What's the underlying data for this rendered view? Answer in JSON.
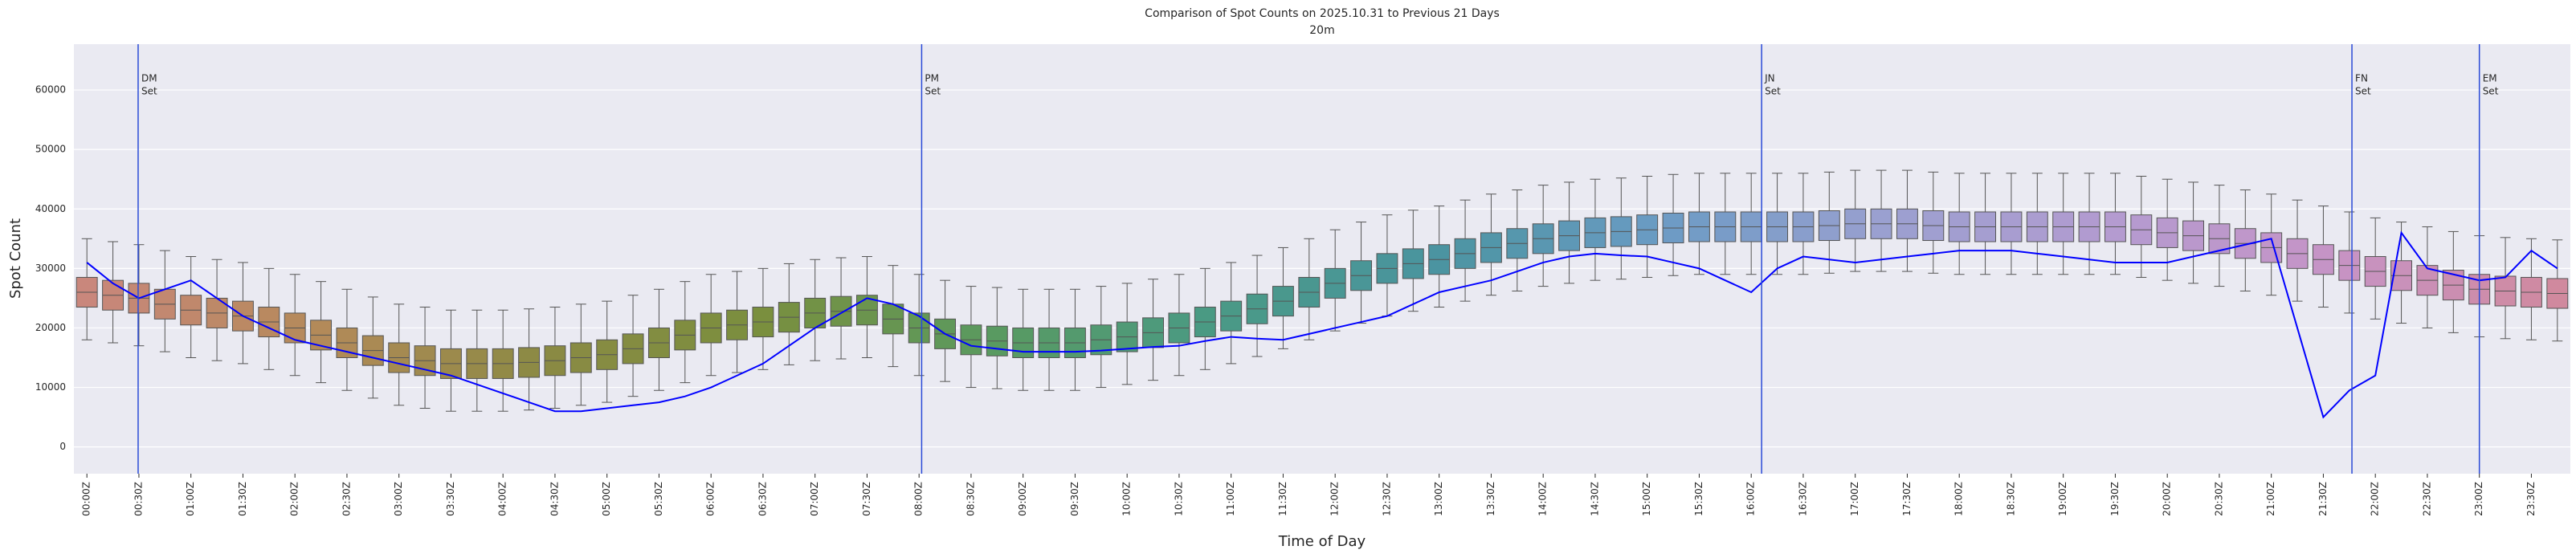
{
  "chart_data": {
    "type": "box",
    "title": "Comparison of Spot Counts on 2025.10.31 to Previous 21 Days",
    "subtitle": "20m",
    "x_label": "Time of Day",
    "y_label": "Spot Count",
    "categories": [
      "00:00Z",
      null,
      "00:30Z",
      null,
      "01:00Z",
      null,
      "01:30Z",
      null,
      "02:00Z",
      null,
      "02:30Z",
      null,
      "03:00Z",
      null,
      "03:30Z",
      null,
      "04:00Z",
      null,
      "04:30Z",
      null,
      "05:00Z",
      null,
      "05:30Z",
      null,
      "06:00Z",
      null,
      "06:30Z",
      null,
      "07:00Z",
      null,
      "07:30Z",
      null,
      "08:00Z",
      null,
      "08:30Z",
      null,
      "09:00Z",
      null,
      "09:30Z",
      null,
      "10:00Z",
      null,
      "10:30Z",
      null,
      "11:00Z",
      null,
      "11:30Z",
      null,
      "12:00Z",
      null,
      "12:30Z",
      null,
      "13:00Z",
      null,
      "13:30Z",
      null,
      "14:00Z",
      null,
      "14:30Z",
      null,
      "15:00Z",
      null,
      "15:30Z",
      null,
      "16:00Z",
      null,
      "16:30Z",
      null,
      "17:00Z",
      null,
      "17:30Z",
      null,
      "18:00Z",
      null,
      "18:30Z",
      null,
      "19:00Z",
      null,
      "19:30Z",
      null,
      "20:00Z",
      null,
      "20:30Z",
      null,
      "21:00Z",
      null,
      "21:30Z",
      null,
      "22:00Z",
      null,
      "22:30Z",
      null,
      "23:00Z",
      null,
      "23:30Z",
      null
    ],
    "boxes": {
      "whislo": [
        18000,
        17500,
        17000,
        16000,
        15000,
        14500,
        14000,
        13000,
        12000,
        10800,
        9500,
        8200,
        7000,
        6500,
        6000,
        6000,
        6000,
        6200,
        6500,
        7000,
        7500,
        8500,
        9500,
        10800,
        12000,
        12500,
        13000,
        13800,
        14500,
        14800,
        15000,
        13500,
        12000,
        11000,
        10000,
        9800,
        9500,
        9500,
        9500,
        10000,
        10500,
        11200,
        12000,
        13000,
        14000,
        15200,
        16500,
        18000,
        19500,
        20800,
        22000,
        22800,
        23500,
        24500,
        25500,
        26200,
        27000,
        27500,
        28000,
        28200,
        28500,
        28800,
        29000,
        29000,
        29000,
        29000,
        29000,
        29200,
        29500,
        29500,
        29500,
        29200,
        29000,
        29000,
        29000,
        29000,
        29000,
        29000,
        29000,
        28500,
        28000,
        27500,
        27000,
        26200,
        25500,
        24500,
        23500,
        22500,
        21500,
        20800,
        20000,
        19200,
        18500,
        18200,
        18000,
        17800
      ],
      "q1": [
        23500,
        23000,
        22500,
        21500,
        20500,
        20000,
        19500,
        18500,
        17500,
        16300,
        15000,
        13700,
        12500,
        12000,
        11500,
        11500,
        11500,
        11700,
        12000,
        12500,
        13000,
        14000,
        15000,
        16300,
        17500,
        18000,
        18500,
        19300,
        20000,
        20300,
        20500,
        19000,
        17500,
        16500,
        15500,
        15300,
        15000,
        15000,
        15000,
        15500,
        16000,
        16700,
        17500,
        18500,
        19500,
        20700,
        22000,
        23500,
        25000,
        26300,
        27500,
        28300,
        29000,
        30000,
        31000,
        31700,
        32500,
        33000,
        33500,
        33700,
        34000,
        34300,
        34500,
        34500,
        34500,
        34500,
        34500,
        34700,
        35000,
        35000,
        35000,
        34700,
        34500,
        34500,
        34500,
        34500,
        34500,
        34500,
        34500,
        34000,
        33500,
        33000,
        32500,
        31700,
        31000,
        30000,
        29000,
        28000,
        27000,
        26300,
        25500,
        24700,
        24000,
        23700,
        23500,
        23300
      ],
      "median": [
        26000,
        25500,
        25000,
        24000,
        23000,
        22500,
        22000,
        21000,
        20000,
        18800,
        17500,
        16200,
        15000,
        14500,
        14000,
        14000,
        14000,
        14200,
        14500,
        15000,
        15500,
        16500,
        17500,
        18800,
        20000,
        20500,
        21000,
        21800,
        22500,
        22800,
        23000,
        21500,
        20000,
        19000,
        18000,
        17800,
        17500,
        17500,
        17500,
        18000,
        18500,
        19200,
        20000,
        21000,
        22000,
        23200,
        24500,
        26000,
        27500,
        28800,
        30000,
        30800,
        31500,
        32500,
        33500,
        34200,
        35000,
        35500,
        36000,
        36200,
        36500,
        36800,
        37000,
        37000,
        37000,
        37000,
        37000,
        37200,
        37500,
        37500,
        37500,
        37200,
        37000,
        37000,
        37000,
        37000,
        37000,
        37000,
        37000,
        36500,
        36000,
        35500,
        35000,
        34200,
        33500,
        32500,
        31500,
        30500,
        29500,
        28800,
        28000,
        27200,
        26500,
        26200,
        26000,
        25800
      ],
      "q3": [
        28500,
        28000,
        27500,
        26500,
        25500,
        25000,
        24500,
        23500,
        22500,
        21300,
        20000,
        18700,
        17500,
        17000,
        16500,
        16500,
        16500,
        16700,
        17000,
        17500,
        18000,
        19000,
        20000,
        21300,
        22500,
        23000,
        23500,
        24300,
        25000,
        25300,
        25500,
        24000,
        22500,
        21500,
        20500,
        20300,
        20000,
        20000,
        20000,
        20500,
        21000,
        21700,
        22500,
        23500,
        24500,
        25700,
        27000,
        28500,
        30000,
        31300,
        32500,
        33300,
        34000,
        35000,
        36000,
        36700,
        37500,
        38000,
        38500,
        38700,
        39000,
        39300,
        39500,
        39500,
        39500,
        39500,
        39500,
        39700,
        40000,
        40000,
        40000,
        39700,
        39500,
        39500,
        39500,
        39500,
        39500,
        39500,
        39500,
        39000,
        38500,
        38000,
        37500,
        36700,
        36000,
        35000,
        34000,
        33000,
        32000,
        31300,
        30500,
        29700,
        29000,
        28700,
        28500,
        28300
      ],
      "whishi": [
        35000,
        34500,
        34000,
        33000,
        32000,
        31500,
        31000,
        30000,
        29000,
        27800,
        26500,
        25200,
        24000,
        23500,
        23000,
        23000,
        23000,
        23200,
        23500,
        24000,
        24500,
        25500,
        26500,
        27800,
        29000,
        29500,
        30000,
        30800,
        31500,
        31800,
        32000,
        30500,
        29000,
        28000,
        27000,
        26800,
        26500,
        26500,
        26500,
        27000,
        27500,
        28200,
        29000,
        30000,
        31000,
        32200,
        33500,
        35000,
        36500,
        37800,
        39000,
        39800,
        40500,
        41500,
        42500,
        43200,
        44000,
        44500,
        45000,
        45200,
        45500,
        45800,
        46000,
        46000,
        46000,
        46000,
        46000,
        46200,
        46500,
        46500,
        46500,
        46200,
        46000,
        46000,
        46000,
        46000,
        46000,
        46000,
        46000,
        45500,
        45000,
        44500,
        44000,
        43200,
        42500,
        41500,
        40500,
        39500,
        38500,
        37800,
        37000,
        36200,
        35500,
        35200,
        35000,
        34800
      ]
    },
    "palette": [
      "#c9877c",
      "#b58a5a",
      "#8c8a44",
      "#7a8f3e",
      "#5a9a5f",
      "#4a9a84",
      "#4a94a0",
      "#6b9bc4",
      "#9aa0d0",
      "#b39bd0",
      "#c694c6",
      "#d0899e"
    ],
    "series": [
      {
        "color": "#0000ff",
        "values": [
          31000,
          27500,
          25000,
          26500,
          28000,
          25000,
          22000,
          20000,
          18000,
          17000,
          16000,
          15000,
          14000,
          13000,
          12000,
          10500,
          9000,
          7500,
          6000,
          6000,
          6500,
          7000,
          7500,
          8500,
          10000,
          12000,
          14000,
          17000,
          20000,
          22500,
          25000,
          24000,
          22000,
          19000,
          17000,
          16500,
          16000,
          16000,
          16000,
          16200,
          16500,
          16800,
          17000,
          17800,
          18500,
          18200,
          18000,
          19000,
          20000,
          21000,
          22000,
          24000,
          26000,
          27000,
          28000,
          29500,
          31000,
          32000,
          32500,
          32200,
          32000,
          31000,
          30000,
          28000,
          26000,
          30000,
          32000,
          31500,
          31000,
          31500,
          32000,
          32500,
          33000,
          33000,
          33000,
          32500,
          32000,
          31500,
          31000,
          31000,
          31000,
          32000,
          33000,
          34000,
          35000,
          20000,
          5000,
          9500,
          12000,
          36000,
          30000,
          29000,
          28000,
          28500,
          33000,
          30000
        ]
      }
    ],
    "vlines": [
      {
        "x": 1.97,
        "label_lines": [
          "DM",
          "Set"
        ]
      },
      {
        "x": 32.1,
        "label_lines": [
          "PM",
          "Set"
        ]
      },
      {
        "x": 64.4,
        "label_lines": [
          "JN",
          "Set"
        ]
      },
      {
        "x": 87.1,
        "label_lines": [
          "FN",
          "Set"
        ]
      },
      {
        "x": 92.0,
        "label_lines": [
          "EM",
          "Set"
        ]
      }
    ],
    "vline_color": "#2a4bd7",
    "ylim": [
      -4500,
      67700
    ],
    "yticks": [
      0,
      10000,
      20000,
      30000,
      40000,
      50000,
      60000
    ],
    "grid": true
  }
}
